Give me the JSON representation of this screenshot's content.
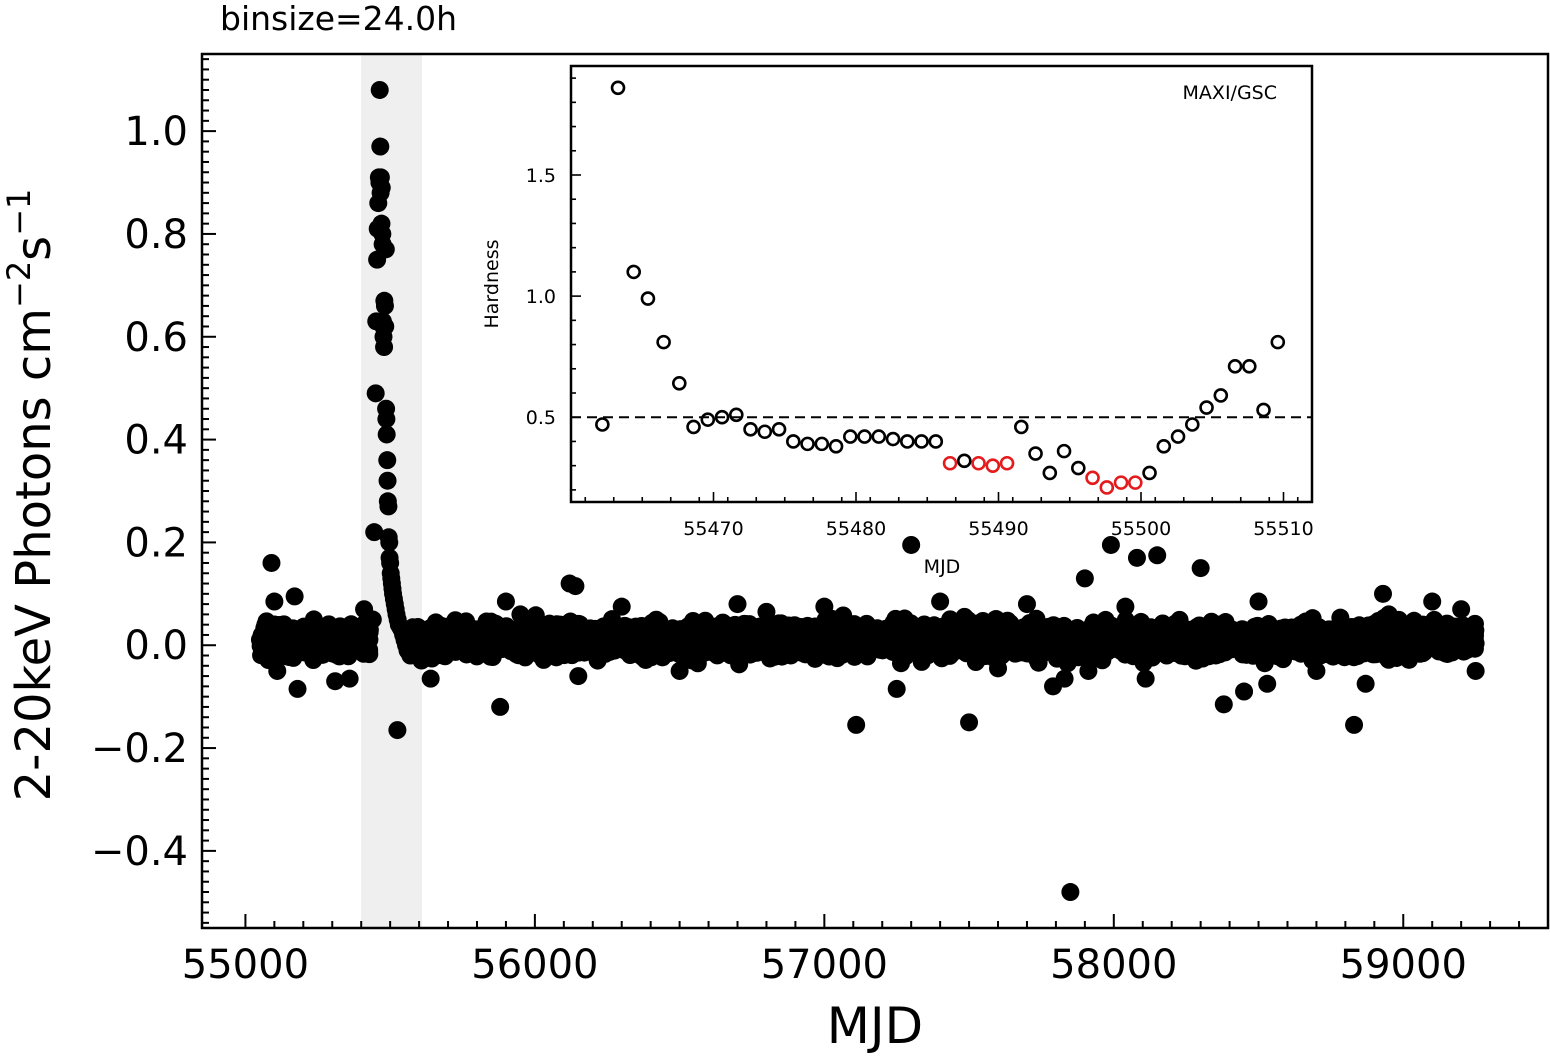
{
  "chart_data": [
    {
      "type": "scatter",
      "title": "binsize=24.0h",
      "xlabel": "MJD",
      "ylabel_base": "2-20keV Photons cm",
      "ylabel_exp1": "−2",
      "ylabel_mid": "s",
      "ylabel_exp2": "−1",
      "xlim": [
        54850,
        59500
      ],
      "ylim": [
        -0.55,
        1.15
      ],
      "xticks": [
        55000,
        56000,
        57000,
        58000,
        59000
      ],
      "xtick_labels": [
        "55000",
        "56000",
        "57000",
        "58000",
        "59000"
      ],
      "yticks": [
        -0.4,
        -0.2,
        0.0,
        0.2,
        0.4,
        0.6,
        0.8,
        1.0
      ],
      "ytick_labels": [
        "−0.4",
        "−0.2",
        "0.0",
        "0.2",
        "0.4",
        "0.6",
        "0.8",
        "1.0"
      ],
      "highlight_band": [
        55400,
        55610
      ],
      "background": {
        "x_range": [
          55050,
          59250
        ],
        "noise_sigma": 0.015,
        "n_points": 4200
      },
      "outburst_points": [
        [
          55410,
          0.07
        ],
        [
          55420,
          0.04
        ],
        [
          55430,
          0.03
        ],
        [
          55440,
          0.05
        ],
        [
          55445,
          0.22
        ],
        [
          55450,
          0.49
        ],
        [
          55452,
          0.63
        ],
        [
          55455,
          0.75
        ],
        [
          55457,
          0.81
        ],
        [
          55459,
          0.86
        ],
        [
          55461,
          0.91
        ],
        [
          55463,
          0.9
        ],
        [
          55464,
          1.08
        ],
        [
          55466,
          0.97
        ],
        [
          55467,
          0.88
        ],
        [
          55468,
          0.91
        ],
        [
          55470,
          0.82
        ],
        [
          55471,
          0.89
        ],
        [
          55473,
          0.8
        ],
        [
          55474,
          0.78
        ],
        [
          55475,
          0.63
        ],
        [
          55476,
          0.62
        ],
        [
          55477,
          0.6
        ],
        [
          55479,
          0.58
        ],
        [
          55480,
          0.67
        ],
        [
          55482,
          0.66
        ],
        [
          55483,
          0.62
        ],
        [
          55485,
          0.77
        ],
        [
          55486,
          0.46
        ],
        [
          55487,
          0.44
        ],
        [
          55488,
          0.41
        ],
        [
          55490,
          0.36
        ],
        [
          55491,
          0.32
        ],
        [
          55492,
          0.28
        ],
        [
          55494,
          0.27
        ],
        [
          55495,
          0.21
        ],
        [
          55497,
          0.2
        ],
        [
          55498,
          0.17
        ],
        [
          55500,
          0.16
        ],
        [
          55502,
          0.14
        ],
        [
          55504,
          0.13
        ],
        [
          55506,
          0.12
        ],
        [
          55508,
          0.11
        ],
        [
          55510,
          0.1
        ],
        [
          55513,
          0.09
        ],
        [
          55516,
          0.08
        ],
        [
          55519,
          0.07
        ],
        [
          55522,
          0.06
        ],
        [
          55526,
          0.05
        ],
        [
          55530,
          0.04
        ],
        [
          55535,
          0.035
        ],
        [
          55540,
          0.03
        ],
        [
          55545,
          0.02
        ],
        [
          55550,
          0.01
        ],
        [
          55555,
          0.0
        ],
        [
          55560,
          -0.01
        ],
        [
          55565,
          0.0
        ],
        [
          55570,
          -0.02
        ],
        [
          55580,
          0.01
        ],
        [
          55590,
          -0.005
        ]
      ],
      "outlier_points": [
        [
          55090,
          0.16
        ],
        [
          55100,
          0.085
        ],
        [
          55100,
          0.04
        ],
        [
          55110,
          -0.05
        ],
        [
          55180,
          -0.085
        ],
        [
          55170,
          0.095
        ],
        [
          55310,
          -0.07
        ],
        [
          55360,
          -0.065
        ],
        [
          55525,
          -0.165
        ],
        [
          55640,
          -0.065
        ],
        [
          55880,
          -0.12
        ],
        [
          56120,
          0.12
        ],
        [
          56140,
          0.115
        ],
        [
          56150,
          -0.06
        ],
        [
          57110,
          -0.155
        ],
        [
          57250,
          -0.085
        ],
        [
          57300,
          0.195
        ],
        [
          57500,
          -0.15
        ],
        [
          57850,
          -0.48
        ],
        [
          57900,
          0.13
        ],
        [
          57990,
          0.195
        ],
        [
          58080,
          0.17
        ],
        [
          58150,
          0.175
        ],
        [
          58300,
          0.15
        ],
        [
          58380,
          -0.115
        ],
        [
          58450,
          -0.09
        ],
        [
          58530,
          -0.075
        ],
        [
          58830,
          -0.155
        ],
        [
          58870,
          -0.075
        ],
        [
          58930,
          0.1
        ],
        [
          59100,
          0.085
        ],
        [
          57790,
          -0.08
        ],
        [
          57830,
          -0.065
        ],
        [
          58110,
          -0.065
        ],
        [
          58040,
          0.075
        ],
        [
          57700,
          0.08
        ],
        [
          55900,
          0.085
        ],
        [
          56300,
          0.075
        ],
        [
          56700,
          0.08
        ],
        [
          57000,
          0.075
        ],
        [
          57400,
          0.085
        ],
        [
          58500,
          0.085
        ],
        [
          59200,
          0.07
        ],
        [
          56500,
          -0.05
        ],
        [
          57600,
          -0.045
        ],
        [
          58700,
          -0.05
        ],
        [
          59250,
          -0.05
        ],
        [
          55950,
          0.06
        ],
        [
          56800,
          0.065
        ],
        [
          58950,
          0.06
        ]
      ]
    },
    {
      "type": "scatter",
      "label": "MAXI/GSC",
      "xlabel": "MJD",
      "ylabel": "Hardness",
      "xlim": [
        55460,
        55512
      ],
      "ylim": [
        0.15,
        1.95
      ],
      "xticks": [
        55470,
        55480,
        55490,
        55500,
        55510
      ],
      "xtick_labels": [
        "55470",
        "55480",
        "55490",
        "55500",
        "55510"
      ],
      "yticks": [
        0.5,
        1.0,
        1.5
      ],
      "ytick_labels": [
        "0.5",
        "1.0",
        "1.5"
      ],
      "reference_line": 0.5,
      "highlight_color": "#e41a1c",
      "points": [
        {
          "x": 55462.2,
          "y": 0.47,
          "h": false
        },
        {
          "x": 55463.3,
          "y": 1.86,
          "h": false
        },
        {
          "x": 55464.4,
          "y": 1.1,
          "h": false
        },
        {
          "x": 55465.4,
          "y": 0.99,
          "h": false
        },
        {
          "x": 55466.5,
          "y": 0.81,
          "h": false
        },
        {
          "x": 55467.6,
          "y": 0.64,
          "h": false
        },
        {
          "x": 55468.6,
          "y": 0.46,
          "h": false
        },
        {
          "x": 55469.6,
          "y": 0.49,
          "h": false
        },
        {
          "x": 55470.6,
          "y": 0.5,
          "h": false
        },
        {
          "x": 55471.6,
          "y": 0.51,
          "h": false
        },
        {
          "x": 55472.6,
          "y": 0.45,
          "h": false
        },
        {
          "x": 55473.6,
          "y": 0.44,
          "h": false
        },
        {
          "x": 55474.6,
          "y": 0.45,
          "h": false
        },
        {
          "x": 55475.6,
          "y": 0.4,
          "h": false
        },
        {
          "x": 55476.6,
          "y": 0.39,
          "h": false
        },
        {
          "x": 55477.6,
          "y": 0.39,
          "h": false
        },
        {
          "x": 55478.6,
          "y": 0.38,
          "h": false
        },
        {
          "x": 55479.6,
          "y": 0.42,
          "h": false
        },
        {
          "x": 55480.6,
          "y": 0.42,
          "h": false
        },
        {
          "x": 55481.6,
          "y": 0.42,
          "h": false
        },
        {
          "x": 55482.6,
          "y": 0.41,
          "h": false
        },
        {
          "x": 55483.6,
          "y": 0.4,
          "h": false
        },
        {
          "x": 55484.6,
          "y": 0.4,
          "h": false
        },
        {
          "x": 55485.6,
          "y": 0.4,
          "h": false
        },
        {
          "x": 55486.6,
          "y": 0.31,
          "h": true
        },
        {
          "x": 55487.6,
          "y": 0.32,
          "h": false
        },
        {
          "x": 55488.6,
          "y": 0.31,
          "h": true
        },
        {
          "x": 55489.6,
          "y": 0.3,
          "h": true
        },
        {
          "x": 55490.6,
          "y": 0.31,
          "h": true
        },
        {
          "x": 55491.6,
          "y": 0.46,
          "h": false
        },
        {
          "x": 55492.6,
          "y": 0.35,
          "h": false
        },
        {
          "x": 55493.6,
          "y": 0.27,
          "h": false
        },
        {
          "x": 55494.6,
          "y": 0.36,
          "h": false
        },
        {
          "x": 55495.6,
          "y": 0.29,
          "h": false
        },
        {
          "x": 55496.6,
          "y": 0.25,
          "h": true
        },
        {
          "x": 55497.6,
          "y": 0.21,
          "h": true
        },
        {
          "x": 55498.6,
          "y": 0.23,
          "h": true
        },
        {
          "x": 55499.6,
          "y": 0.23,
          "h": true
        },
        {
          "x": 55500.6,
          "y": 0.27,
          "h": false
        },
        {
          "x": 55501.6,
          "y": 0.38,
          "h": false
        },
        {
          "x": 55502.6,
          "y": 0.42,
          "h": false
        },
        {
          "x": 55503.6,
          "y": 0.47,
          "h": false
        },
        {
          "x": 55504.6,
          "y": 0.54,
          "h": false
        },
        {
          "x": 55505.6,
          "y": 0.59,
          "h": false
        },
        {
          "x": 55506.6,
          "y": 0.71,
          "h": false
        },
        {
          "x": 55507.6,
          "y": 0.71,
          "h": false
        },
        {
          "x": 55508.6,
          "y": 0.53,
          "h": false
        },
        {
          "x": 55509.6,
          "y": 0.81,
          "h": false
        }
      ]
    }
  ]
}
